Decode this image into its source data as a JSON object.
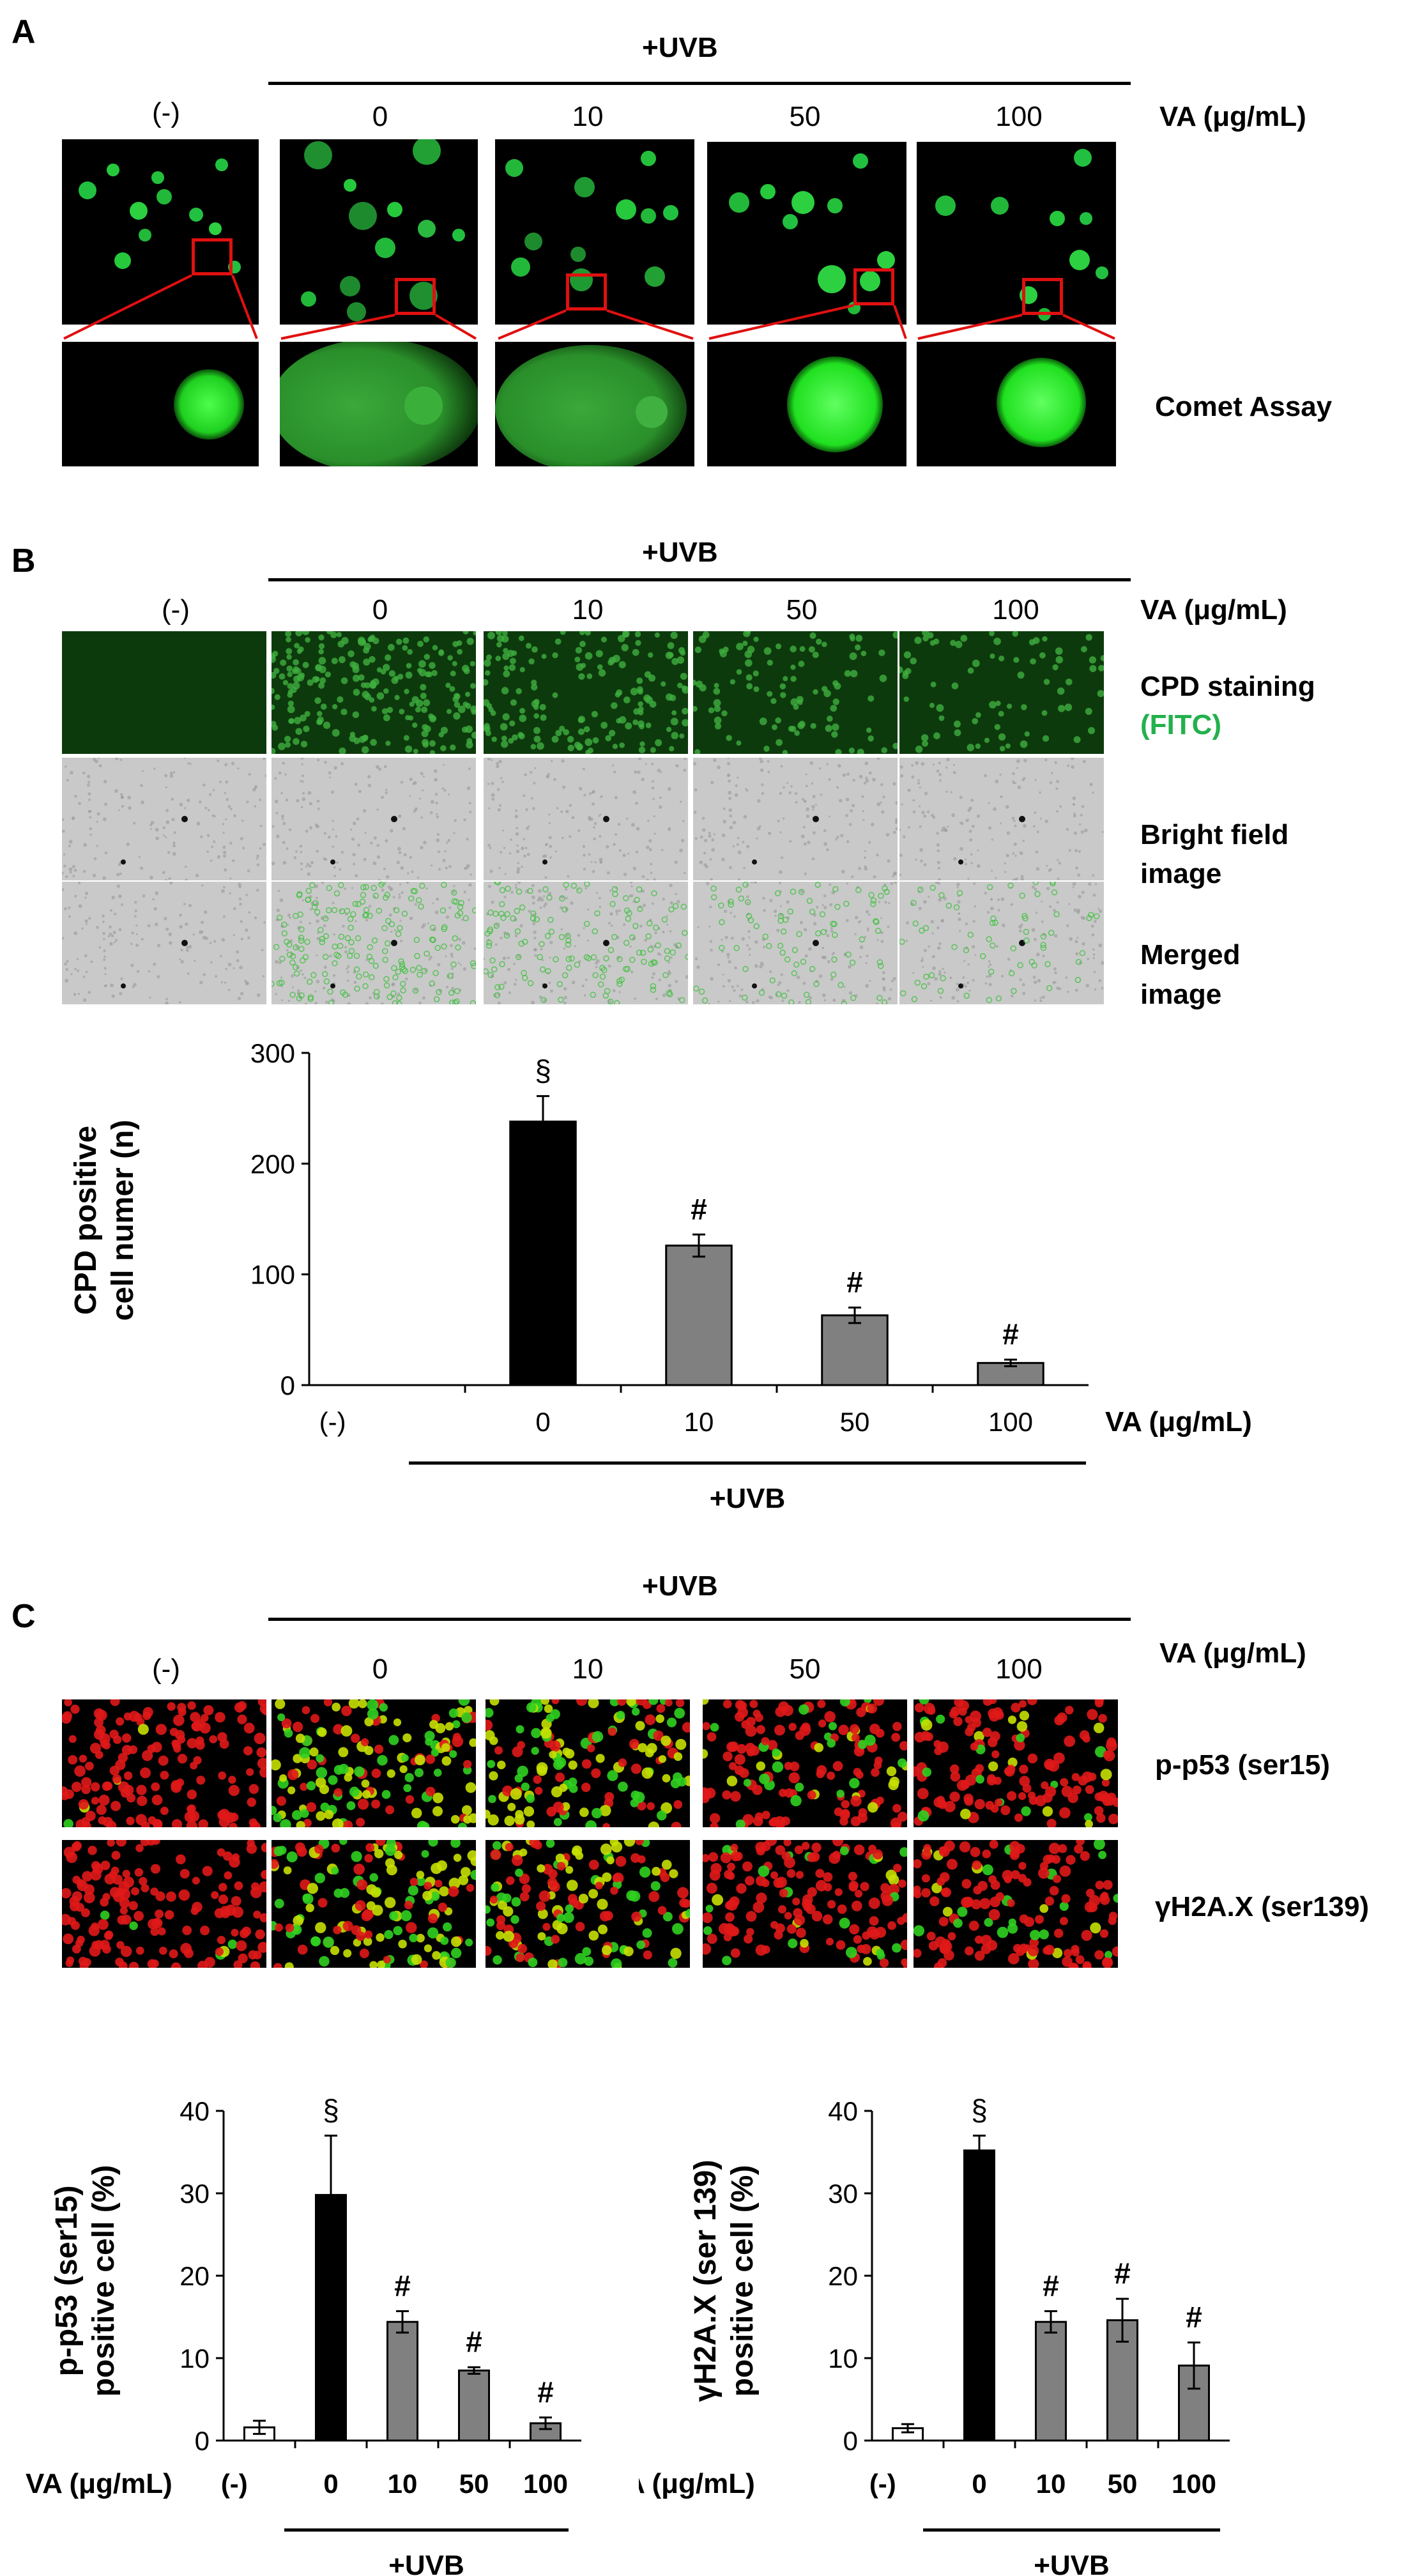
{
  "panelA": {
    "label": "A",
    "uvb": "+UVB",
    "conditions": [
      "(-)",
      "0",
      "10",
      "50",
      "100"
    ],
    "va_label": "VA (μg/mL)",
    "row_label": "Comet Assay"
  },
  "panelB": {
    "label": "B",
    "uvb": "+UVB",
    "conditions": [
      "(-)",
      "0",
      "10",
      "50",
      "100"
    ],
    "va_label": "VA (μg/mL)",
    "row1_line1": "CPD staining",
    "row1_line2": "(FITC)",
    "row2_line1": "Bright field",
    "row2_line2": "image",
    "row3_line1": "Merged",
    "row3_line2": "image",
    "fitc_color": "#22b14c"
  },
  "panelC": {
    "label": "C",
    "uvb": "+UVB",
    "conditions": [
      "(-)",
      "0",
      "10",
      "50",
      "100"
    ],
    "va_label": "VA (μg/mL)",
    "row1": "p-p53 (ser15)",
    "row2": "γH2A.X (ser139)"
  },
  "chart_data": [
    {
      "type": "bar",
      "ylabel": "CPD positive cell numer (n)",
      "xlabel": "VA (μg/mL)",
      "group_label": "+UVB",
      "categories": [
        "(-)",
        "0",
        "10",
        "50",
        "100"
      ],
      "values": [
        0,
        238,
        126,
        63,
        20
      ],
      "errors": [
        0,
        23,
        10,
        7,
        3
      ],
      "bar_colors": [
        "#ffffff",
        "#000000",
        "#808080",
        "#808080",
        "#808080"
      ],
      "annotations": [
        "",
        "§",
        "#",
        "#",
        "#"
      ],
      "ylim": [
        0,
        300
      ],
      "yticks": [
        "0",
        "100",
        "200",
        "300"
      ]
    },
    {
      "type": "bar",
      "ylabel": "p-p53 (ser15) positive cell (%)",
      "xlabel": "VA (μg/mL)",
      "group_label": "+UVB",
      "categories": [
        "(-)",
        "0",
        "10",
        "50",
        "100"
      ],
      "values": [
        1.6,
        29.8,
        14.4,
        8.5,
        2.1
      ],
      "errors": [
        0.8,
        7.2,
        1.3,
        0.4,
        0.7
      ],
      "bar_colors": [
        "#ffffff",
        "#000000",
        "#808080",
        "#808080",
        "#808080"
      ],
      "annotations": [
        "",
        "§",
        "#",
        "#",
        "#"
      ],
      "ylim": [
        0,
        40
      ],
      "yticks": [
        "0",
        "10",
        "20",
        "30",
        "40"
      ]
    },
    {
      "type": "bar",
      "ylabel": "γH2A.X (ser 139) positive cell (%)",
      "xlabel": "VA (μg/mL)",
      "group_label": "+UVB",
      "categories": [
        "(-)",
        "0",
        "10",
        "50",
        "100"
      ],
      "values": [
        1.5,
        35.2,
        14.4,
        14.6,
        9.1
      ],
      "errors": [
        0.5,
        1.8,
        1.3,
        2.6,
        2.8
      ],
      "bar_colors": [
        "#ffffff",
        "#000000",
        "#808080",
        "#808080",
        "#808080"
      ],
      "annotations": [
        "",
        "§",
        "#",
        "#",
        "#"
      ],
      "ylim": [
        0,
        40
      ],
      "yticks": [
        "0",
        "10",
        "20",
        "30",
        "40"
      ]
    }
  ]
}
